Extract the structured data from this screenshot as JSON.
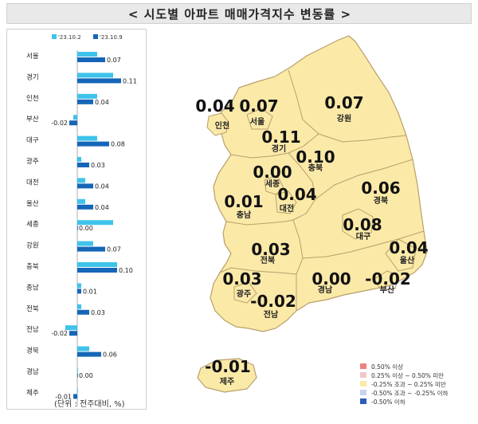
{
  "title": "< 시도별 아파트 매매가격지수 변동률 >",
  "colors": {
    "series_light": "#3fc3ea",
    "series_dark": "#1566b8",
    "map_fill": "#fbe9a8",
    "map_stroke": "#b8a06a",
    "legend_1": "#f08080",
    "legend_2": "#f6c6c6",
    "legend_3": "#fbe9a8",
    "legend_4": "#c9d3ee",
    "legend_5": "#2f5bbf"
  },
  "chart_data": [
    {
      "type": "bar",
      "orientation": "horizontal",
      "categories": [
        "서울",
        "경기",
        "인천",
        "부산",
        "대구",
        "광주",
        "대전",
        "울산",
        "세종",
        "강원",
        "충북",
        "충남",
        "전북",
        "전남",
        "경북",
        "경남",
        "제주"
      ],
      "series": [
        {
          "name": "'23.10.2",
          "values": [
            0.05,
            0.09,
            0.05,
            -0.01,
            0.05,
            0.01,
            0.02,
            0.02,
            0.09,
            0.04,
            0.1,
            0.01,
            0.01,
            -0.03,
            0.03,
            0.0,
            0.0
          ]
        },
        {
          "name": "'23.10.9",
          "values": [
            0.07,
            0.11,
            0.04,
            -0.02,
            0.08,
            0.03,
            0.04,
            0.04,
            0.0,
            0.07,
            0.1,
            0.01,
            0.03,
            -0.02,
            0.06,
            0.0,
            -0.01
          ]
        }
      ],
      "data_labels": [
        "0.07",
        "0.11",
        "0.04",
        "-0.02",
        "0.08",
        "0.03",
        "0.04",
        "0.04",
        "0.00",
        "0.07",
        "0.10",
        "0.01",
        "0.03",
        "-0.02",
        "0.06",
        "0.00",
        "-0.01"
      ],
      "unit_note": "(단위 : 전주대비, %)"
    },
    {
      "type": "map",
      "regions": [
        {
          "name": "인천",
          "value": "0.04"
        },
        {
          "name": "서울",
          "value": "0.07"
        },
        {
          "name": "강원",
          "value": "0.07"
        },
        {
          "name": "경기",
          "value": "0.11"
        },
        {
          "name": "충북",
          "value": "0.10"
        },
        {
          "name": "세종",
          "value": "0.00"
        },
        {
          "name": "대전",
          "value": "0.04"
        },
        {
          "name": "충남",
          "value": "0.01"
        },
        {
          "name": "경북",
          "value": "0.06"
        },
        {
          "name": "대구",
          "value": "0.08"
        },
        {
          "name": "울산",
          "value": "0.04"
        },
        {
          "name": "전북",
          "value": "0.03"
        },
        {
          "name": "광주",
          "value": "0.03"
        },
        {
          "name": "경남",
          "value": "0.00"
        },
        {
          "name": "부산",
          "value": "-0.02"
        },
        {
          "name": "전남",
          "value": "-0.02"
        },
        {
          "name": "제주",
          "value": "-0.01"
        }
      ],
      "legend": [
        "0.50% 이상",
        "0.25% 이상 ~ 0.50% 미만",
        "-0.25% 조과 ~ 0.25% 미만",
        "-0.50% 조과 ~ -0.25% 이하",
        "-0.50% 이하"
      ]
    }
  ]
}
